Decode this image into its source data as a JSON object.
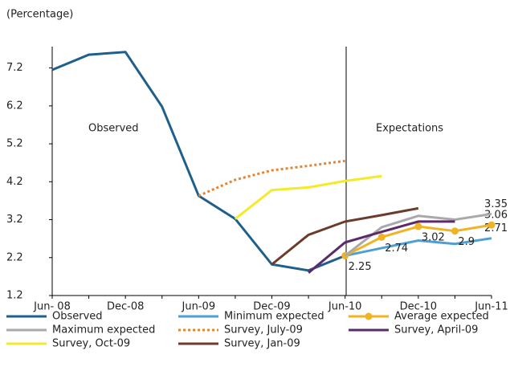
{
  "chart_data": {
    "type": "line",
    "y_label": "(Percentage)",
    "annotations": [
      "Observed",
      "Expectations"
    ],
    "categories": [
      "Jun- 08",
      null,
      "Dec-08",
      null,
      "Jun-09",
      null,
      "Dec-09",
      null,
      "Jun-10",
      null,
      "Dec-10",
      null,
      "Jun-11"
    ],
    "ylim": [
      1.2,
      7.7
    ],
    "yticks": [
      1.2,
      2.2,
      3.2,
      4.2,
      5.2,
      6.2,
      7.2
    ],
    "series": [
      {
        "name": "Observed",
        "color": "#1f5f8b",
        "values": [
          7.15,
          7.55,
          7.62,
          6.18,
          3.83,
          3.22,
          2.02,
          1.86,
          2.25,
          null,
          null,
          null,
          null
        ]
      },
      {
        "name": "Minimum expected",
        "color": "#4f9fd3",
        "values": [
          null,
          null,
          null,
          null,
          null,
          null,
          null,
          null,
          2.25,
          2.45,
          2.65,
          2.56,
          2.71
        ],
        "value_labels": [
          null,
          null,
          null,
          null,
          null,
          null,
          null,
          null,
          null,
          null,
          null,
          null,
          "2.71"
        ]
      },
      {
        "name": "Average expected",
        "color": "#f0b323",
        "marker": true,
        "values": [
          null,
          null,
          null,
          null,
          null,
          null,
          null,
          null,
          2.25,
          2.74,
          3.02,
          2.9,
          3.06
        ],
        "value_labels": [
          null,
          null,
          null,
          null,
          null,
          null,
          null,
          null,
          "2.25",
          "2.74",
          "3.02",
          "2.9",
          "3.06"
        ]
      },
      {
        "name": "Maximum expected",
        "color": "#a9a9a9",
        "values": [
          null,
          null,
          null,
          null,
          null,
          null,
          null,
          null,
          2.25,
          3.0,
          3.3,
          3.2,
          3.35
        ],
        "value_labels": [
          null,
          null,
          null,
          null,
          null,
          null,
          null,
          null,
          null,
          null,
          null,
          null,
          "3.35"
        ]
      },
      {
        "name": "Survey, July-09",
        "color": "#e8842f",
        "dash": true,
        "values": [
          null,
          null,
          null,
          null,
          3.83,
          4.25,
          4.5,
          4.62,
          4.75,
          null,
          null,
          null,
          null
        ]
      },
      {
        "name": "Survey, April-09",
        "color": "#5c2a6c",
        "values": [
          null,
          null,
          null,
          null,
          null,
          null,
          null,
          1.8,
          2.6,
          2.88,
          3.15,
          3.15,
          null
        ]
      },
      {
        "name": "Survey, Oct-09",
        "color": "#f5ea2a",
        "values": [
          null,
          null,
          null,
          null,
          null,
          3.22,
          3.98,
          4.05,
          4.22,
          4.35,
          null,
          null,
          null
        ]
      },
      {
        "name": "Survey, Jan-09",
        "color": "#6b3b2b",
        "values": [
          null,
          null,
          null,
          null,
          null,
          null,
          2.02,
          2.8,
          3.15,
          3.32,
          3.5,
          null,
          null
        ]
      }
    ]
  }
}
